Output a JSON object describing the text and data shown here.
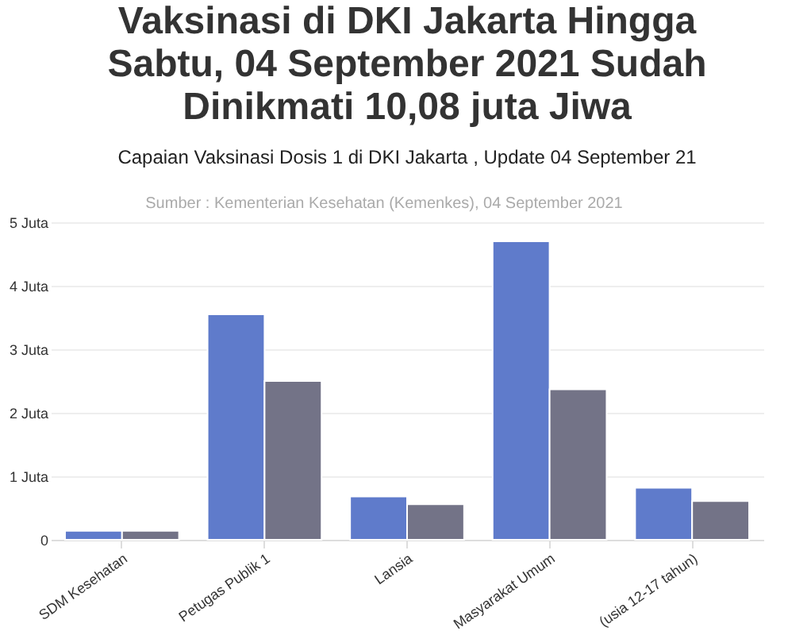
{
  "chart_data": {
    "type": "bar",
    "title": "Vaksinasi di DKI Jakarta Hingga Sabtu, 04 September 2021 Sudah Dinikmati 10,08 juta Jiwa",
    "subtitle": "Capaian Vaksinasi Dosis 1 di DKI Jakarta , Update 04 September 21",
    "annotations": [
      "Sumber : Kementerian Kesehatan (Kemenkes), 04 September 2021"
    ],
    "categories": [
      "SDM Kesehatan",
      "Petugas Publik 1",
      "Lansia",
      "Masyarakat Umum",
      "(usia 12-17 tahun)"
    ],
    "series": [
      {
        "color": "#5f7bcb",
        "values": [
          0.14,
          3.55,
          0.68,
          4.7,
          0.82
        ]
      },
      {
        "color": "#737387",
        "values": [
          0.14,
          2.5,
          0.56,
          2.37,
          0.61
        ]
      }
    ],
    "ylim": [
      0,
      5
    ],
    "yticks": [
      0,
      {
        "value": 1,
        "label": "1 Juta"
      },
      {
        "value": 2,
        "label": "2 Juta"
      },
      {
        "value": 3,
        "label": "3 Juta"
      },
      {
        "value": 4,
        "label": "4 Juta"
      },
      {
        "value": 5,
        "label": "5 Juta"
      }
    ],
    "grid": "y"
  }
}
